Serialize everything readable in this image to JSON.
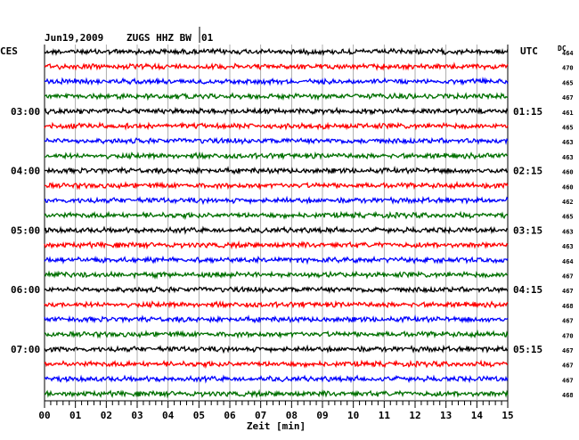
{
  "chart_data": {
    "type": "line",
    "header": {
      "date": "Jun19,2009",
      "station": "ZUGS HHZ BW",
      "channel": "01"
    },
    "left_timezone": "CES",
    "right_timezone": "UTC",
    "dc_label": "DC",
    "xlabel": "Zeit [min]",
    "xlim": [
      0,
      15
    ],
    "x_ticks": [
      "00",
      "01",
      "02",
      "03",
      "04",
      "05",
      "06",
      "07",
      "08",
      "09",
      "10",
      "11",
      "12",
      "13",
      "14",
      "15"
    ],
    "minutes_per_trace": 15,
    "trace_count": 24,
    "trace_colors": [
      "#000000",
      "#ff0000",
      "#0000ff",
      "#007000"
    ],
    "left_hour_labels": [
      {
        "trace": 4,
        "text": "03:00"
      },
      {
        "trace": 8,
        "text": "04:00"
      },
      {
        "trace": 12,
        "text": "05:00"
      },
      {
        "trace": 16,
        "text": "06:00"
      },
      {
        "trace": 20,
        "text": "07:00"
      }
    ],
    "right_hour_labels": [
      {
        "trace": 4,
        "text": "01:15"
      },
      {
        "trace": 8,
        "text": "02:15"
      },
      {
        "trace": 12,
        "text": "03:15"
      },
      {
        "trace": 16,
        "text": "04:15"
      },
      {
        "trace": 20,
        "text": "05:15"
      }
    ],
    "dc_offsets": [
      "464",
      "470",
      "465",
      "467",
      "461",
      "465",
      "463",
      "463",
      "460",
      "460",
      "462",
      "465",
      "463",
      "463",
      "464",
      "467",
      "467",
      "468",
      "467",
      "470",
      "467",
      "467",
      "467",
      "468"
    ]
  }
}
